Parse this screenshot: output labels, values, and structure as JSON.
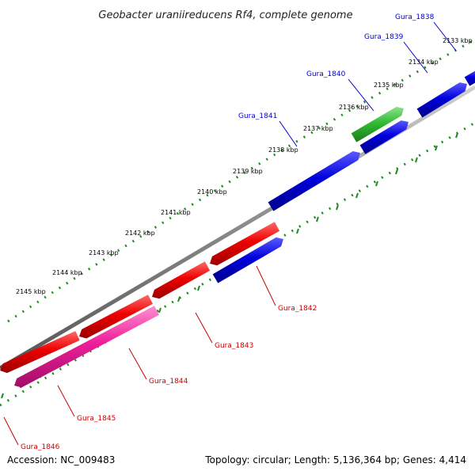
{
  "title": "Geobacter uraniireducens Rf4, complete genome",
  "footer": {
    "accession": "Accession: NC_009483",
    "topology": "Topology: circular; Length: 5,136,364 bp; Genes: 4,414"
  },
  "colors": {
    "forward_cds": "#0000dd",
    "reverse_cds": "#ee0000",
    "rna_gene": "#33bb33",
    "pseudo_gene": "#ee1f9a",
    "forward_label": "#0000cc",
    "reverse_label": "#cc0000",
    "backbone": "#8a8a8a",
    "dots": "#1f8a1f"
  },
  "ticks": [
    {
      "label": "2133 kbp"
    },
    {
      "label": "2134 kbp"
    },
    {
      "label": "2135 kbp"
    },
    {
      "label": "2136 kbp"
    },
    {
      "label": "2137 kbp"
    },
    {
      "label": "2138 kbp"
    },
    {
      "label": "2139 kbp"
    },
    {
      "label": "2140 kbp"
    },
    {
      "label": "2141 kbp"
    },
    {
      "label": "2142 kbp"
    },
    {
      "label": "2143 kbp"
    },
    {
      "label": "2144 kbp"
    },
    {
      "label": "2145 kbp"
    }
  ],
  "genes": [
    {
      "id": "Gura_1838",
      "strand": "forward",
      "kind": "cds"
    },
    {
      "id": "Gura_1839",
      "strand": "forward",
      "kind": "cds"
    },
    {
      "id": "Gura_1840",
      "strand": "forward",
      "kind": "rna"
    },
    {
      "id": "Gura_1841",
      "strand": "forward",
      "kind": "cds"
    },
    {
      "id": "Gura_1842",
      "strand": "forward",
      "kind": "cds"
    },
    {
      "id": "Gura_1843",
      "strand": "reverse",
      "kind": "cds"
    },
    {
      "id": "Gura_1844",
      "strand": "reverse",
      "kind": "cds"
    },
    {
      "id": "Gura_1845",
      "strand": "reverse",
      "kind": "pseudo"
    },
    {
      "id": "Gura_1846",
      "strand": "reverse",
      "kind": "cds"
    }
  ]
}
